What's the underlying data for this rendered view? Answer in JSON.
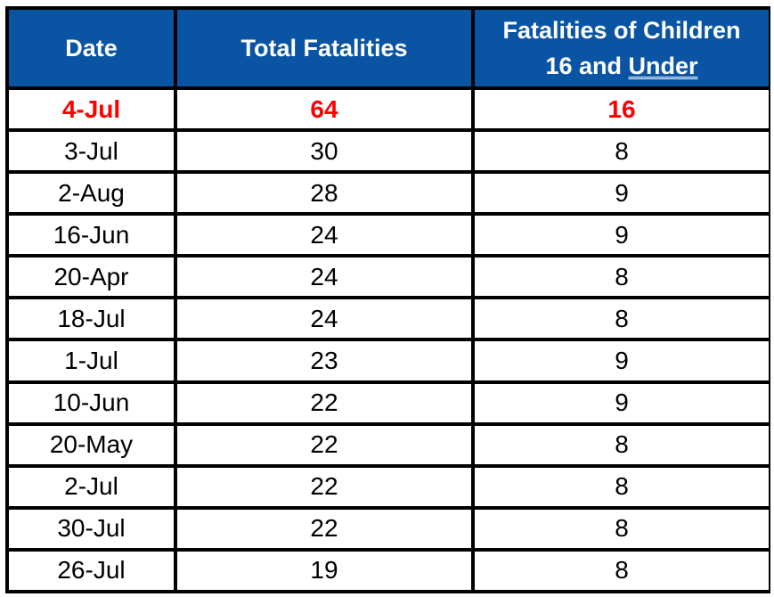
{
  "table": {
    "headers": {
      "date": "Date",
      "total": "Total Fatalities",
      "children_line1": "Fatalities of Children",
      "children_line2_a": "16 and ",
      "children_line2_b": "Under"
    },
    "rows": [
      {
        "date": "4-Jul",
        "total": "64",
        "children": "16"
      },
      {
        "date": "3-Jul",
        "total": "30",
        "children": "8"
      },
      {
        "date": "2-Aug",
        "total": "28",
        "children": "9"
      },
      {
        "date": "16-Jun",
        "total": "24",
        "children": "9"
      },
      {
        "date": "20-Apr",
        "total": "24",
        "children": "8"
      },
      {
        "date": "18-Jul",
        "total": "24",
        "children": "8"
      },
      {
        "date": "1-Jul",
        "total": "23",
        "children": "9"
      },
      {
        "date": "10-Jun",
        "total": "22",
        "children": "9"
      },
      {
        "date": "20-May",
        "total": "22",
        "children": "8"
      },
      {
        "date": "2-Jul",
        "total": "22",
        "children": "8"
      },
      {
        "date": "30-Jul",
        "total": "22",
        "children": "8"
      },
      {
        "date": "26-Jul",
        "total": "19",
        "children": "8"
      }
    ]
  },
  "colors": {
    "header_bg": "#0a55a3",
    "header_text": "#ffffff",
    "highlight_text": "#ff0000",
    "grid": "#000000"
  }
}
